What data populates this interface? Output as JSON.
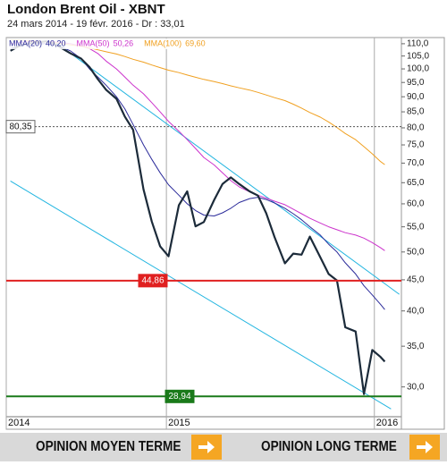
{
  "chart_data": {
    "type": "line",
    "title": "London Brent Oil - XBNT",
    "subtitle": "24 mars 2014 - 19 févr. 2016 - Dr : 33,01",
    "x": [
      2014.25,
      2014.29,
      2014.33,
      2014.37,
      2014.42,
      2014.46,
      2014.5,
      2014.54,
      2014.59,
      2014.63,
      2014.67,
      2014.71,
      2014.76,
      2014.8,
      2014.84,
      2014.89,
      2014.93,
      2014.97,
      2015.01,
      2015.06,
      2015.1,
      2015.14,
      2015.18,
      2015.23,
      2015.27,
      2015.31,
      2015.35,
      2015.4,
      2015.44,
      2015.48,
      2015.52,
      2015.57,
      2015.61,
      2015.65,
      2015.69,
      2015.74,
      2015.78,
      2015.82,
      2015.86,
      2015.91,
      2015.95,
      2015.99,
      2016.03,
      2016.05
    ],
    "series": [
      {
        "color": "#1c2b3a",
        "values": [
          107.1,
          109,
          110,
          110.4,
          111,
          110,
          108,
          106,
          104,
          100.7,
          96.2,
          92.4,
          89.3,
          83.5,
          79.4,
          63.4,
          56.1,
          51.1,
          49.2,
          59.7,
          62.9,
          55.1,
          56,
          60.9,
          64.7,
          66.3,
          64.7,
          62.9,
          61.9,
          57.9,
          52.9,
          47.9,
          49.7,
          49.5,
          53,
          49,
          46,
          44.9,
          37.6,
          37,
          29.2,
          34.5,
          33.6,
          33.01
        ]
      },
      {
        "name": "MMA(20)",
        "legend_label": "40,20",
        "color": "#2b2b9a",
        "values": [
          108,
          109,
          110,
          110,
          110,
          109.5,
          108.5,
          107,
          104,
          100,
          97,
          94,
          90,
          86,
          81,
          75,
          71,
          67.5,
          64.5,
          62,
          60,
          58.5,
          57.5,
          57.3,
          58,
          59,
          60.3,
          61.2,
          61.5,
          61,
          60.2,
          59,
          57.8,
          56.5,
          55,
          53.3,
          51.5,
          50,
          48,
          46,
          44,
          42.5,
          41,
          40.2
        ]
      },
      {
        "name": "MMA(50)",
        "legend_label": "50,26",
        "color": "#cc33cc",
        "values": [
          110,
          110.5,
          110.8,
          111,
          111,
          110.8,
          110.5,
          110,
          109,
          108,
          106,
          103,
          100,
          97,
          94,
          91,
          88,
          85,
          82,
          79,
          76.5,
          74,
          71.5,
          69.5,
          67.5,
          65.5,
          64,
          62.8,
          62,
          61.3,
          60.6,
          59.8,
          58.8,
          57.8,
          56.8,
          55.8,
          55,
          54.4,
          53.8,
          53.3,
          52.7,
          51.8,
          50.8,
          50.26
        ]
      },
      {
        "name": "MMA(100)",
        "legend_label": "69,60",
        "color": "#f0a020",
        "values": [
          111.5,
          111.5,
          111.3,
          111,
          110.8,
          110.5,
          110,
          109.5,
          109,
          108.3,
          107.5,
          106.7,
          105.8,
          104.8,
          103.7,
          102.6,
          101.5,
          100.5,
          99.5,
          98.6,
          97.7,
          96.9,
          96.1,
          95.3,
          94.6,
          93.8,
          93.1,
          92.3,
          91.5,
          90.6,
          89.7,
          88.7,
          87.5,
          86.2,
          84.8,
          83.3,
          81.8,
          80.1,
          78.3,
          76.5,
          74.5,
          72.5,
          70.4,
          69.6
        ]
      }
    ],
    "trendlines": [
      {
        "color": "#22b5e0",
        "x": [
          2014.47,
          2016.12
        ],
        "values": [
          110.4,
          42.6
        ]
      },
      {
        "color": "#22b5e0",
        "x": [
          2014.25,
          2016.08
        ],
        "values": [
          65.4,
          27.6
        ]
      }
    ],
    "levels": [
      {
        "value": 80.35,
        "label": "80,35",
        "color": "#555555",
        "dotted": true
      },
      {
        "value": 44.86,
        "label": "44,86",
        "color": "#e02020"
      },
      {
        "value": 28.94,
        "label": "28,94",
        "color": "#1a7a1a"
      }
    ],
    "xlim": [
      2014.23,
      2016.13
    ],
    "xticks": [
      {
        "value": 2014.23,
        "label": "2014"
      },
      2015,
      2016
    ],
    "ylim": [
      26.8,
      112.6
    ],
    "log_y": true,
    "yticks": [
      {
        "value": 30,
        "label": "30,0"
      },
      {
        "value": 35,
        "label": "35,0"
      },
      {
        "value": 40,
        "label": "40,0"
      },
      {
        "value": 45,
        "label": "45,0"
      },
      {
        "value": 50,
        "label": "50,0"
      },
      {
        "value": 55,
        "label": "55,0"
      },
      {
        "value": 60,
        "label": "60,0"
      },
      {
        "value": 65,
        "label": "65,0"
      },
      {
        "value": 70,
        "label": "70,0"
      },
      {
        "value": 75,
        "label": "75,0"
      },
      {
        "value": 80,
        "label": "80,0"
      },
      {
        "value": 85,
        "label": "85,0"
      },
      {
        "value": 90,
        "label": "90,0"
      },
      {
        "value": 95,
        "label": "95,0"
      },
      {
        "value": 100,
        "label": "100,0"
      },
      {
        "value": 105,
        "label": "105,0"
      },
      {
        "value": 110,
        "label": "110,0"
      }
    ]
  },
  "buttons": [
    "OPINION MOYEN TERME",
    "OPINION LONG TERME"
  ]
}
